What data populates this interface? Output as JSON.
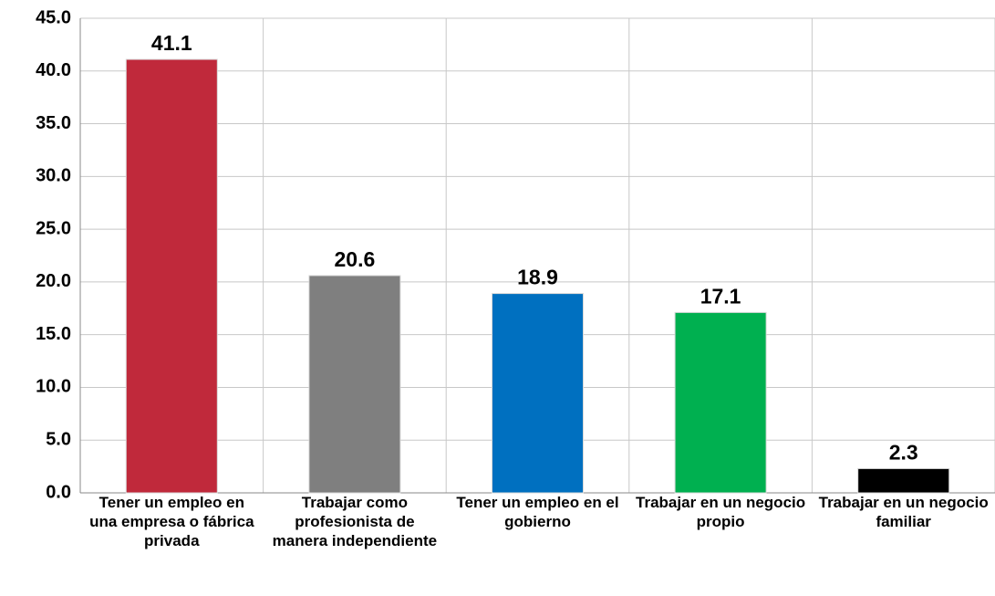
{
  "chart_data": {
    "type": "bar",
    "categories": [
      "Tener un empleo en una empresa o fábrica privada",
      "Trabajar como profesionista de manera independiente",
      "Tener un empleo en el gobierno",
      "Trabajar en un negocio propio",
      "Trabajar en un negocio familiar"
    ],
    "values": [
      41.1,
      20.6,
      18.9,
      17.1,
      2.3
    ],
    "colors": [
      "#c0293b",
      "#7f7f7f",
      "#0070c0",
      "#00b050",
      "#000000"
    ],
    "ylim": [
      0,
      45
    ],
    "yticks": [
      {
        "value": 0,
        "label": "0.0"
      },
      {
        "value": 5,
        "label": "5.0"
      },
      {
        "value": 10,
        "label": "10.0"
      },
      {
        "value": 15,
        "label": "15.0"
      },
      {
        "value": 20,
        "label": "20.0"
      },
      {
        "value": 25,
        "label": "25.0"
      },
      {
        "value": 30,
        "label": "30.0"
      },
      {
        "value": 35,
        "label": "35.0"
      },
      {
        "value": 40,
        "label": "40.0"
      },
      {
        "value": 45,
        "label": "45.0"
      }
    ],
    "grid": true
  }
}
